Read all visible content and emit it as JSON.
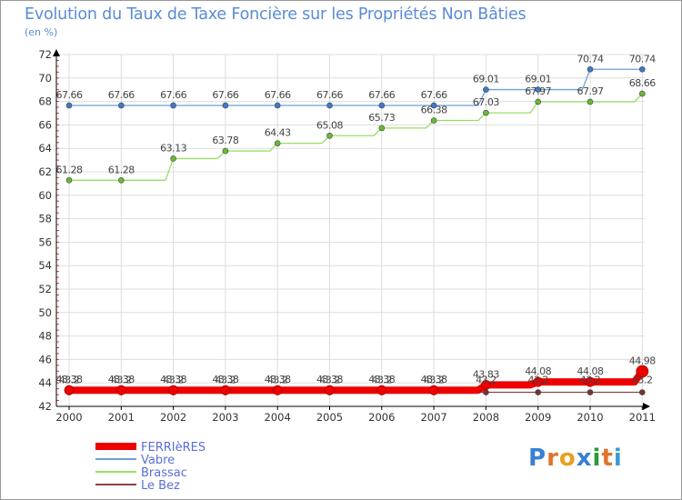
{
  "header": {
    "title": "Evolution du Taux de Taxe Foncière sur les Propriétés Non Bâties",
    "unit": "(en %)"
  },
  "logo": {
    "letters": [
      "P",
      "r",
      "o",
      "x",
      "i",
      "t",
      "i"
    ],
    "colors": [
      "#3a7fd5",
      "#e0742a",
      "#e8a020",
      "#3a7fd5",
      "#2a9a3a",
      "#e0742a",
      "#3a9ad5"
    ]
  },
  "colors": {
    "frame": "#999999",
    "grid": "#dddddd",
    "axis": "#000000",
    "tick_red": "#ee3333",
    "title": "#5a8bd6",
    "legend_text": "#5a6fd6"
  },
  "chart_data": {
    "type": "line",
    "title": "Evolution du Taux de Taxe Foncière sur les Propriétés Non Bâties",
    "ylabel": "(en %)",
    "xlabel": "",
    "ylim": [
      42,
      72
    ],
    "ytick_step": 2,
    "yticks": [
      "42",
      "44",
      "46",
      "48",
      "50",
      "52",
      "54",
      "56",
      "58",
      "60",
      "62",
      "64",
      "66",
      "68",
      "70",
      "72"
    ],
    "grid": true,
    "legend_position": "bottom-left",
    "categories": [
      "2000",
      "2001",
      "2002",
      "2003",
      "2004",
      "2005",
      "2006",
      "2007",
      "2008",
      "2009",
      "2010",
      "2011"
    ],
    "series": [
      {
        "name": "FERRIèRES",
        "color": "#ee0000",
        "marker_color": "#ee0000",
        "style": "thick",
        "values": [
          43.38,
          43.38,
          43.38,
          43.38,
          43.38,
          43.38,
          43.38,
          43.38,
          43.83,
          44.08,
          44.08,
          44.98
        ],
        "labels": [
          "43.38",
          "43.38",
          "43.38",
          "43.38",
          "43.38",
          "43.38",
          "43.38",
          "43.38",
          "43.83",
          "44.08",
          "44.08",
          "44.98"
        ]
      },
      {
        "name": "Vabre",
        "color": "#6e9fd8",
        "marker_color": "#3b7bc8",
        "style": "normal",
        "values": [
          67.66,
          67.66,
          67.66,
          67.66,
          67.66,
          67.66,
          67.66,
          67.66,
          69.01,
          69.01,
          70.74,
          70.74
        ],
        "labels": [
          "67.66",
          "67.66",
          "67.66",
          "67.66",
          "67.66",
          "67.66",
          "67.66",
          "67.66",
          "69.01",
          "69.01",
          "70.74",
          "70.74"
        ]
      },
      {
        "name": "Brassac",
        "color": "#99dd66",
        "marker_color": "#66bb33",
        "style": "normal",
        "values": [
          61.28,
          61.28,
          63.13,
          63.78,
          64.43,
          65.08,
          65.73,
          66.38,
          67.03,
          67.97,
          67.97,
          68.66
        ],
        "labels": [
          "61.28",
          "61.28",
          "63.13",
          "63.78",
          "64.43",
          "65.08",
          "65.73",
          "66.38",
          "67.03",
          "67.97",
          "67.97",
          "68.66"
        ]
      },
      {
        "name": "Le Bez",
        "color": "#884444",
        "marker_color": "#773333",
        "style": "normal",
        "values": [
          43.2,
          43.2,
          43.2,
          43.2,
          43.2,
          43.2,
          43.2,
          43.2,
          43.2,
          43.2,
          43.2,
          43.2
        ],
        "labels": [
          "43.2",
          "43.2",
          "43.2",
          "43.2",
          "43.2",
          "43.2",
          "43.2",
          "43.2",
          "43.2",
          "43.2",
          "43.2",
          "43.2"
        ]
      }
    ]
  }
}
